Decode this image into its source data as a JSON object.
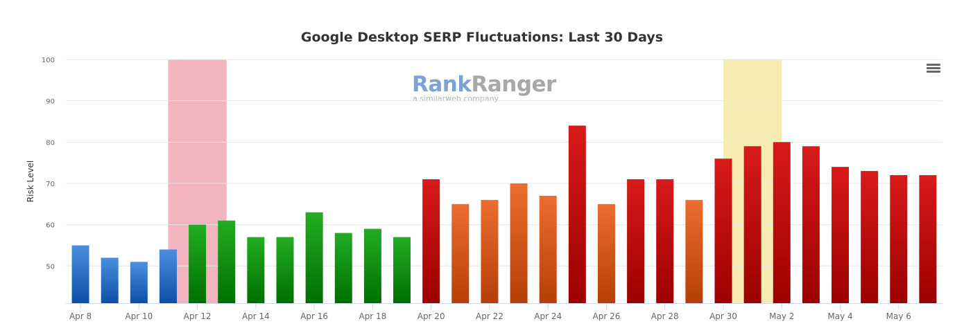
{
  "chart_data": {
    "type": "bar",
    "title": "Google Desktop SERP Fluctuations: Last 30 Days",
    "xlabel": "",
    "ylabel": "Risk Level",
    "ylim": [
      41,
      100
    ],
    "yticks": [
      50,
      60,
      70,
      80,
      90,
      100
    ],
    "grid": true,
    "categories": [
      "Apr 8",
      "Apr 9",
      "Apr 10",
      "Apr 11",
      "Apr 12",
      "Apr 13",
      "Apr 14",
      "Apr 15",
      "Apr 16",
      "Apr 17",
      "Apr 18",
      "Apr 19",
      "Apr 20",
      "Apr 21",
      "Apr 22",
      "Apr 23",
      "Apr 24",
      "Apr 25",
      "Apr 26",
      "Apr 27",
      "Apr 28",
      "Apr 29",
      "Apr 30",
      "May 1",
      "May 2",
      "May 3",
      "May 4",
      "May 5",
      "May 6",
      "May 7"
    ],
    "tick_labels": [
      "Apr 8",
      "Apr 10",
      "Apr 12",
      "Apr 14",
      "Apr 16",
      "Apr 18",
      "Apr 20",
      "Apr 22",
      "Apr 24",
      "Apr 26",
      "Apr 28",
      "Apr 30",
      "May 2",
      "May 4",
      "May 6"
    ],
    "values": [
      55,
      52,
      51,
      54,
      60,
      61,
      57,
      57,
      63,
      58,
      59,
      57,
      71,
      65,
      66,
      70,
      67,
      84,
      65,
      71,
      71,
      66,
      76,
      79,
      80,
      79,
      74,
      73,
      72,
      72
    ],
    "color_levels": [
      "blue",
      "blue",
      "blue",
      "blue",
      "green",
      "green",
      "green",
      "green",
      "green",
      "green",
      "green",
      "green",
      "red",
      "orange",
      "orange",
      "orange",
      "orange",
      "red",
      "orange",
      "red",
      "red",
      "orange",
      "red",
      "red",
      "red",
      "red",
      "red",
      "red",
      "red",
      "red"
    ],
    "level_colors": {
      "blue": [
        "#4a8fdf",
        "#0d4fa8"
      ],
      "green": [
        "#22ad22",
        "#006f00"
      ],
      "orange": [
        "#ec6d2f",
        "#b63f07"
      ],
      "red": [
        "#d81a1a",
        "#9c0000"
      ]
    },
    "highlight_bands": [
      {
        "from": "Apr 11",
        "to": "Apr 13",
        "color": "#f0b5bf"
      },
      {
        "from": "Apr 30",
        "to": "May 2",
        "color": "#f6ecb1"
      }
    ]
  },
  "watermark": {
    "brand_first": "Rank",
    "brand_second": "Ranger",
    "tagline": "a similarweb company"
  }
}
